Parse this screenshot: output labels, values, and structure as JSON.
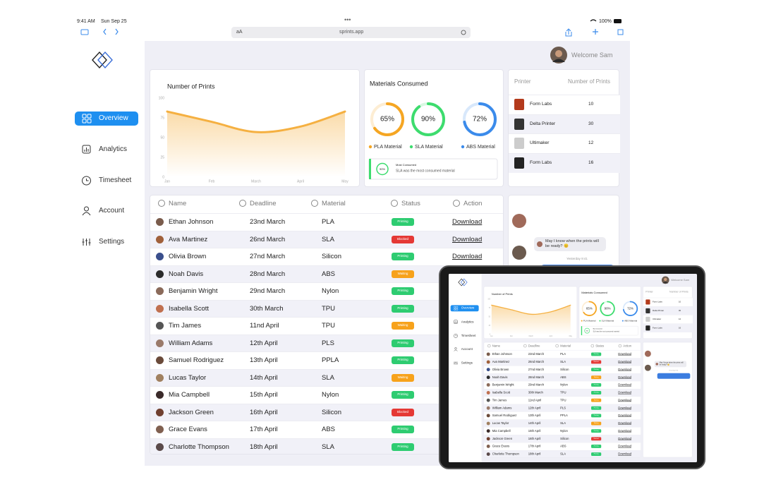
{
  "status_bar": {
    "time": "9:41 AM",
    "date": "Sun Sep 25",
    "battery": "100%"
  },
  "browser": {
    "text_size": "aA",
    "url": "sprints.app"
  },
  "sidebar": {
    "nav": [
      "Overview",
      "Analytics",
      "Timesheet",
      "Account",
      "Settings"
    ],
    "active": 0,
    "active_color": "#1e8ff0"
  },
  "header": {
    "welcome": "Welcome Sam"
  },
  "chart_data": {
    "type": "line",
    "title": "Number of Prints",
    "categories": [
      "Jan",
      "Feb",
      "March",
      "April",
      "May"
    ],
    "values": [
      83,
      70,
      57,
      64,
      83
    ],
    "color": "#f5b041",
    "ylim": [
      0,
      100
    ],
    "yticks": [
      0,
      25,
      50,
      75,
      100
    ]
  },
  "materials": {
    "title": "Materials Consumed",
    "values": [
      65,
      90,
      72
    ],
    "value_labels": [
      "65%",
      "90%",
      "72%"
    ],
    "names": [
      "PLA Material",
      "SLA Material",
      "ABS Material"
    ],
    "colors": [
      "#f5a623",
      "#3ddc6e",
      "#3b8beb"
    ],
    "highlight": {
      "title": "Most Consumed",
      "value": "90%",
      "text": "SLA was the most consumed material"
    }
  },
  "printers": {
    "headers": [
      "Printer",
      "Number of Prints"
    ],
    "rows": [
      [
        "Form Labs",
        10
      ],
      [
        "Delta Printer",
        30
      ],
      [
        "Ultimaker",
        12
      ],
      [
        "Form Labs",
        16
      ]
    ]
  },
  "jobs": {
    "headers": [
      "Name",
      "Deadline",
      "Material",
      "Status",
      "Action"
    ],
    "status_colors": {
      "Printing": "#2ecc71",
      "Blocked": "#e53935",
      "Waiting": "#f7a21b"
    },
    "rows": [
      [
        "Ethan Johnson",
        "23nd March",
        "PLA",
        "Printing",
        "Download"
      ],
      [
        "Ava Martinez",
        "26nd March",
        "SLA",
        "Blocked",
        "Download"
      ],
      [
        "Olivia Brown",
        "27nd March",
        "Silicon",
        "Printing",
        "Download"
      ],
      [
        "Noah Davis",
        "28nd March",
        "ABS",
        "Waiting",
        "Download"
      ],
      [
        "Benjamin Wright",
        "29nd March",
        "Nylon",
        "Printing",
        "Download"
      ],
      [
        "Isabella Scott",
        "30th  March",
        "TPU",
        "Printing",
        "Download"
      ],
      [
        "Tim James",
        "11nd  April",
        "TPU",
        "Waiting",
        "Download"
      ],
      [
        "William Adams",
        "12th  April",
        "PLS",
        "Printing",
        "Download"
      ],
      [
        "Samuel Rodriguez",
        "13th  April",
        "PPLA",
        "Printing",
        "Download"
      ],
      [
        "Lucas Taylor",
        "14th  April",
        "SLA",
        "Waiting",
        "Download"
      ],
      [
        "Mia Campbell",
        "15th  April",
        "Nylon",
        "Printing",
        "Download"
      ],
      [
        "Jackson Green",
        "16th  April",
        "Silicon",
        "Blocked",
        "Download"
      ],
      [
        "Grace Evans",
        "17th  April",
        "ABS",
        "Printing",
        "Download"
      ],
      [
        "Charlotte Thompson",
        "18th  April",
        "SLA",
        "Printing",
        "Download"
      ]
    ]
  },
  "chat": {
    "message": "May I know when the prints will be ready? 😊",
    "time": "Yesterday 9:41"
  }
}
